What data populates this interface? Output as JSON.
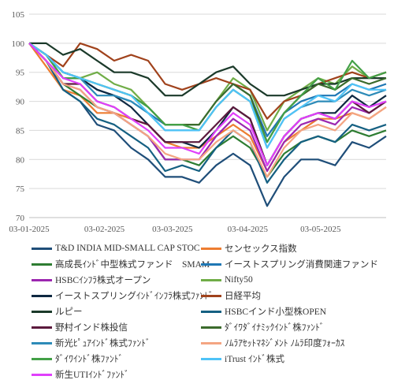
{
  "chart_data": {
    "type": "line",
    "title": "",
    "xlabel": "",
    "ylabel": "",
    "ylim": [
      70,
      105
    ],
    "yticks": [
      70,
      75,
      80,
      85,
      90,
      95,
      100,
      105
    ],
    "xtick_labels": [
      "03-01-2025",
      "03-02-2025",
      "03-03-2025",
      "03-04-2025",
      "03-05-2025"
    ],
    "grid": "horizontal",
    "legend_position": "bottom",
    "x": [
      "2025-01-03",
      "2025-01-10",
      "2025-01-17",
      "2025-01-24",
      "2025-01-31",
      "2025-02-07",
      "2025-02-14",
      "2025-02-21",
      "2025-02-28",
      "2025-03-07",
      "2025-03-14",
      "2025-03-21",
      "2025-03-28",
      "2025-04-04",
      "2025-04-11",
      "2025-04-18",
      "2025-04-25",
      "2025-05-02",
      "2025-05-09",
      "2025-05-16",
      "2025-05-23",
      "2025-05-30"
    ],
    "series": [
      {
        "name": "T&D INDIA MID-SMALL CAP STOC",
        "color": "#1f4e79",
        "values": [
          100,
          97,
          92,
          90,
          86,
          85,
          82,
          80,
          77,
          77,
          76,
          79,
          81,
          79,
          72,
          77,
          80,
          80,
          79,
          83,
          82,
          84
        ]
      },
      {
        "name": "センセックス指数",
        "color": "#ed7d31",
        "values": [
          100,
          96,
          92,
          91,
          88,
          88,
          87,
          86,
          83,
          82,
          82,
          84,
          86,
          84,
          78,
          83,
          85,
          87,
          87,
          88,
          87,
          89
        ]
      },
      {
        "name": "高成長ｲﾝﾄﾞ中型株式ファンド　SMAM",
        "color": "#2e7d32",
        "values": [
          100,
          97,
          93,
          91,
          89,
          88,
          86,
          84,
          80,
          80,
          79,
          82,
          84,
          82,
          77,
          81,
          83,
          84,
          83,
          85,
          84,
          85
        ]
      },
      {
        "name": "イーストスプリング消費関連ファンド",
        "color": "#1f77b4",
        "values": [
          100,
          98,
          95,
          94,
          92,
          91,
          90,
          88,
          86,
          86,
          86,
          90,
          93,
          91,
          84,
          88,
          90,
          91,
          91,
          93,
          92,
          93
        ]
      },
      {
        "name": "HSBCｲﾝﾌﾗ株式オープン",
        "color": "#9c27b0",
        "values": [
          100,
          97,
          93,
          92,
          89,
          88,
          86,
          84,
          80,
          80,
          80,
          84,
          87,
          85,
          78,
          83,
          86,
          87,
          86,
          89,
          88,
          90
        ]
      },
      {
        "name": "Nifty50",
        "color": "#70ad47",
        "values": [
          100,
          98,
          95,
          94,
          95,
          93,
          92,
          89,
          86,
          86,
          86,
          90,
          94,
          92,
          85,
          90,
          92,
          94,
          93,
          96,
          94,
          95
        ]
      },
      {
        "name": "イーストスプリングｲﾝﾄﾞｲﾝﾌﾗ株式ﾌｧﾝﾄﾞ",
        "color": "#0e2841",
        "values": [
          100,
          98,
          94,
          94,
          92,
          91,
          89,
          86,
          83,
          83,
          82,
          85,
          89,
          87,
          79,
          84,
          87,
          88,
          88,
          91,
          89,
          91
        ]
      },
      {
        "name": "日経平均",
        "color": "#a0421c",
        "values": [
          100,
          98,
          96,
          100,
          99,
          97,
          98,
          97,
          93,
          92,
          93,
          94,
          93,
          92,
          87,
          90,
          91,
          93,
          94,
          95,
          94,
          95
        ]
      },
      {
        "name": "ルピー",
        "color": "#1b3a2a",
        "values": [
          100,
          100,
          98,
          99,
          97,
          95,
          95,
          94,
          91,
          91,
          93,
          95,
          96,
          93,
          91,
          91,
          92,
          93,
          93,
          94,
          94,
          94
        ]
      },
      {
        "name": "HSBCインド小型株OPEN",
        "color": "#156082",
        "values": [
          100,
          97,
          92,
          90,
          87,
          86,
          84,
          82,
          78,
          79,
          78,
          82,
          85,
          83,
          76,
          80,
          83,
          84,
          83,
          86,
          85,
          86
        ]
      },
      {
        "name": "野村インド株投信",
        "color": "#5b1a3d",
        "values": [
          100,
          97,
          93,
          93,
          90,
          89,
          87,
          86,
          83,
          83,
          83,
          86,
          89,
          87,
          79,
          84,
          87,
          88,
          87,
          90,
          88,
          90
        ]
      },
      {
        "name": "ﾀﾞｲﾜﾀﾞｲﾅﾐｯｸｲﾝﾄﾞ株ﾌｧﾝﾄﾞ",
        "color": "#3b6b2c",
        "values": [
          100,
          98,
          95,
          94,
          93,
          92,
          91,
          89,
          86,
          86,
          86,
          90,
          93,
          91,
          83,
          88,
          91,
          93,
          92,
          94,
          93,
          94
        ]
      },
      {
        "name": "新光ﾋﾟｭｱｲﾝﾄﾞ株式ﾌｧﾝﾄﾞ",
        "color": "#2d8bb8",
        "values": [
          100,
          98,
          95,
          94,
          91,
          91,
          90,
          88,
          85,
          85,
          85,
          89,
          92,
          90,
          82,
          87,
          89,
          90,
          90,
          92,
          91,
          92
        ]
      },
      {
        "name": "ﾉﾑﾗｱｾｯﾄﾏﾈｼﾞﾒﾝﾄ ﾉﾑﾗ印度ﾌｫｰｶｽ",
        "color": "#f4a582",
        "values": [
          100,
          97,
          93,
          92,
          89,
          88,
          86,
          84,
          81,
          80,
          80,
          83,
          85,
          83,
          77,
          82,
          85,
          86,
          85,
          88,
          87,
          89
        ]
      },
      {
        "name": "ﾀﾞｲﾜｲﾝﾄﾞ株ﾌｧﾝﾄﾞ",
        "color": "#43a047",
        "values": [
          100,
          98,
          94,
          94,
          93,
          92,
          91,
          89,
          86,
          86,
          85,
          89,
          92,
          90,
          83,
          88,
          91,
          94,
          92,
          97,
          94,
          95
        ]
      },
      {
        "name": "iTrust ｲﾝﾄﾞ株式",
        "color": "#4fc3f7",
        "values": [
          100,
          98,
          95,
          94,
          93,
          92,
          91,
          88,
          85,
          85,
          85,
          89,
          92,
          90,
          82,
          87,
          89,
          91,
          90,
          93,
          92,
          92
        ]
      },
      {
        "name": "新生UTIｲﾝﾄﾞﾌｧﾝﾄﾞ",
        "color": "#e040fb",
        "values": [
          100,
          97,
          94,
          93,
          90,
          89,
          87,
          85,
          82,
          82,
          81,
          85,
          88,
          86,
          79,
          84,
          87,
          88,
          87,
          90,
          89,
          90
        ]
      }
    ]
  }
}
